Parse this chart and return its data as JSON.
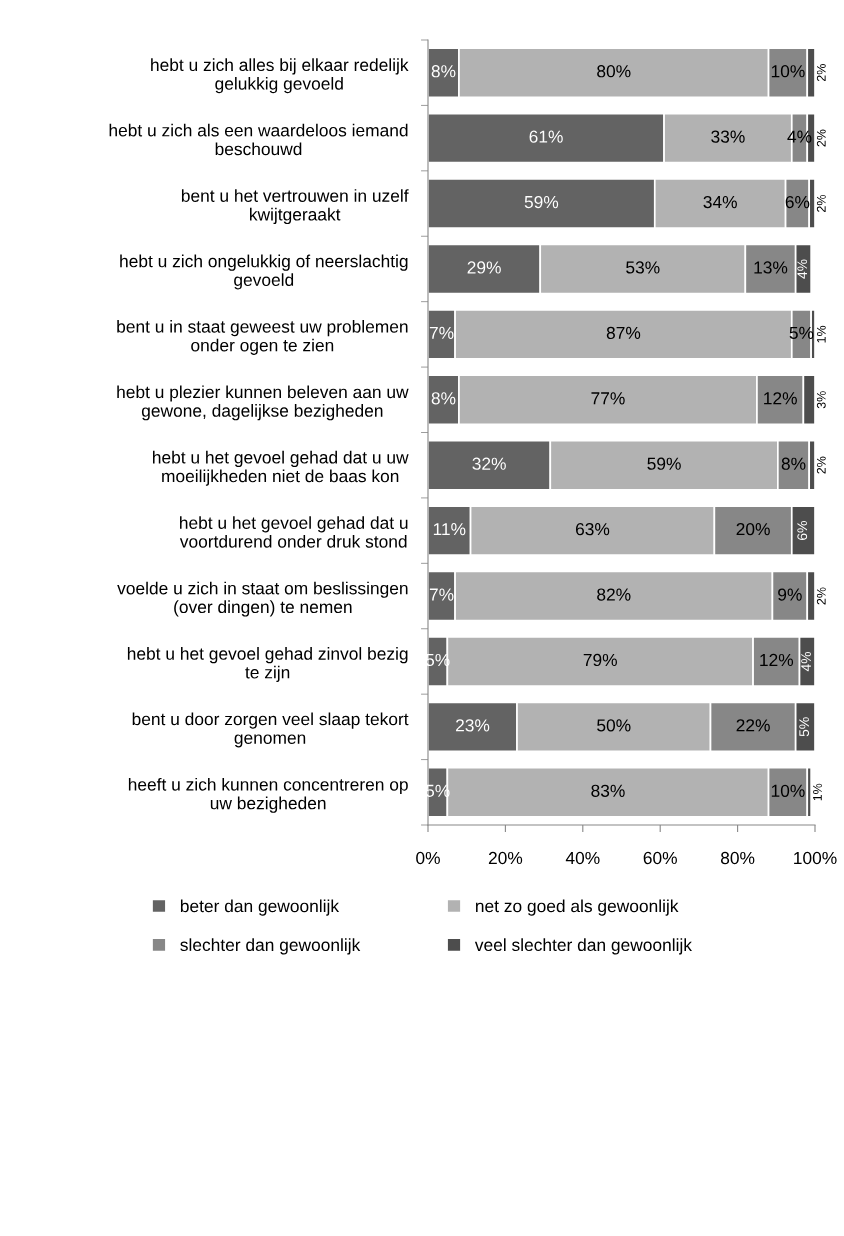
{
  "chart_data": {
    "type": "bar",
    "orientation": "horizontal",
    "stacked": true,
    "grid": false,
    "legend": "bottom",
    "categories": [
      "hebt u zich alles bij elkaar redelijk\ngelukkig gevoeld",
      "hebt u zich als een waardeloos iemand\nbeschouwd",
      "bent u het vertrouwen in uzelf\nkwijtgeraakt",
      "hebt u zich ongelukkig of neerslachtig\ngevoeld",
      "bent u in staat geweest uw problemen\nonder ogen te zien",
      "hebt u plezier kunnen beleven aan uw\ngewone, dagelijkse bezigheden",
      "hebt u het gevoel gehad dat u uw\nmoeilijkheden niet de baas kon",
      "hebt u het gevoel gehad dat u\nvoortdurend onder druk stond",
      "voelde u zich in staat om beslissingen\n(over dingen) te nemen",
      "hebt u het gevoel gehad zinvol bezig\nte zijn",
      "bent u door zorgen veel slaap tekort\ngenomen",
      "heeft u zich kunnen concentreren op\nuw bezigheden"
    ],
    "series": [
      {
        "name": "beter dan gewoonlijk",
        "color": "#636363",
        "values": [
          8,
          61,
          58.6,
          29,
          7,
          8,
          31.6,
          11,
          7,
          5,
          23,
          5
        ],
        "value_labels": [
          "8%",
          "61%",
          "59%",
          "29%",
          "7%",
          "8%",
          "32%",
          "11%",
          "7%",
          "5%",
          "23%",
          "5%"
        ]
      },
      {
        "name": "net zo goed als gewoonlijk",
        "color": "#b2b2b2",
        "values": [
          80,
          33,
          33.8,
          53,
          87,
          77,
          58.8,
          63,
          82,
          79,
          50,
          83
        ],
        "value_labels": [
          "80%",
          "33%",
          "34%",
          "53%",
          "87%",
          "77%",
          "59%",
          "63%",
          "82%",
          "79%",
          "50%",
          "83%"
        ]
      },
      {
        "name": "slechter dan gewoonlijk",
        "color": "#878787",
        "values": [
          10,
          4,
          6.1,
          13,
          5,
          12,
          8.1,
          20,
          9,
          12,
          22,
          10
        ],
        "value_labels": [
          "10%",
          "4%",
          "6%",
          "13%",
          "5%",
          "12%",
          "8%",
          "20%",
          "9%",
          "12%",
          "22%",
          "10%"
        ]
      },
      {
        "name": "veel slechter dan gewoonlijk",
        "color": "#4d4d4d",
        "values": [
          2,
          2,
          1.5,
          4,
          1,
          3,
          1.5,
          6,
          2,
          4,
          5,
          1
        ],
        "value_labels": [
          "2%",
          "2%",
          "2%",
          "4%",
          "1%",
          "3%",
          "2%",
          "6%",
          "2%",
          "4%",
          "5%",
          "1%"
        ]
      }
    ],
    "xlim": [
      0,
      100
    ],
    "xticks": [
      {
        "value": 0,
        "label": "0%"
      },
      {
        "value": 20,
        "label": "20%"
      },
      {
        "value": 40,
        "label": "40%"
      },
      {
        "value": 60,
        "label": "60%"
      },
      {
        "value": 80,
        "label": "80%"
      },
      {
        "value": 100,
        "label": "100%"
      }
    ]
  }
}
